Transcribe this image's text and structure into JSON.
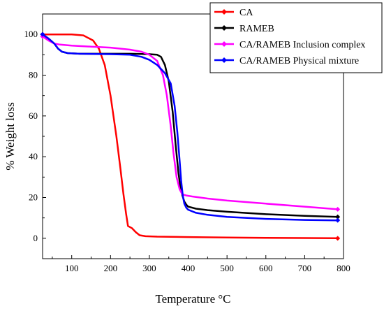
{
  "chart_data": {
    "type": "line",
    "title": "",
    "xlabel": "Temperature °C",
    "ylabel": "% Weight loss",
    "xlim": [
      25,
      800
    ],
    "ylim": [
      -10,
      110
    ],
    "x_ticks": [
      100,
      200,
      300,
      400,
      500,
      600,
      700,
      800
    ],
    "y_ticks": [
      0,
      20,
      40,
      60,
      80,
      100
    ],
    "grid": false,
    "legend_position": "top-right",
    "series": [
      {
        "name": "CA",
        "color": "#ff0000",
        "marker": "diamond",
        "x": [
          25,
          60,
          100,
          130,
          155,
          170,
          185,
          200,
          215,
          225,
          233,
          240,
          245,
          255,
          265,
          275,
          290,
          320,
          400,
          500,
          600,
          700,
          785
        ],
        "y": [
          100,
          100,
          100,
          99.5,
          97,
          93,
          85,
          70,
          50,
          35,
          22,
          12,
          6,
          5,
          3,
          1.5,
          1,
          0.8,
          0.6,
          0.4,
          0.2,
          0.1,
          0
        ]
      },
      {
        "name": "RAMEB",
        "color": "#000000",
        "marker": "diamond",
        "x": [
          25,
          40,
          55,
          65,
          75,
          90,
          120,
          200,
          250,
          300,
          320,
          330,
          340,
          350,
          360,
          368,
          375,
          380,
          385,
          390,
          395,
          400,
          420,
          450,
          500,
          600,
          700,
          785
        ],
        "y": [
          100,
          98,
          95.5,
          93,
          91.5,
          90.8,
          90.5,
          90.5,
          90.5,
          90.3,
          90,
          89,
          85,
          77,
          62,
          45,
          32,
          25,
          21,
          18,
          16.5,
          15.5,
          14.5,
          13.8,
          13,
          11.8,
          11,
          10.5
        ]
      },
      {
        "name": "CA/RAMEB Inclusion complex",
        "color": "#ff00ff",
        "marker": "diamond",
        "x": [
          25,
          40,
          55,
          70,
          100,
          150,
          200,
          250,
          280,
          300,
          320,
          335,
          345,
          355,
          362,
          370,
          378,
          385,
          395,
          410,
          450,
          500,
          600,
          700,
          785
        ],
        "y": [
          99,
          97,
          95.5,
          95,
          94.5,
          94,
          93.5,
          92.5,
          91.5,
          90,
          87,
          80,
          70,
          55,
          42,
          30,
          24,
          21.5,
          21,
          20.5,
          19.5,
          18.5,
          17,
          15.5,
          14.2
        ]
      },
      {
        "name": "CA/RAMEB Physical mixture",
        "color": "#0000ff",
        "marker": "diamond",
        "x": [
          25,
          40,
          55,
          65,
          75,
          90,
          120,
          200,
          250,
          280,
          300,
          320,
          340,
          355,
          365,
          372,
          378,
          382,
          386,
          390,
          395,
          400,
          420,
          450,
          500,
          600,
          700,
          785
        ],
        "y": [
          100,
          98,
          95.5,
          93,
          91.5,
          90.8,
          90.5,
          90.3,
          90,
          89,
          87.5,
          85,
          81,
          76,
          65,
          52,
          38,
          28,
          21,
          17,
          15,
          14,
          12.5,
          11.5,
          10.5,
          9.5,
          9,
          8.8
        ]
      }
    ]
  }
}
